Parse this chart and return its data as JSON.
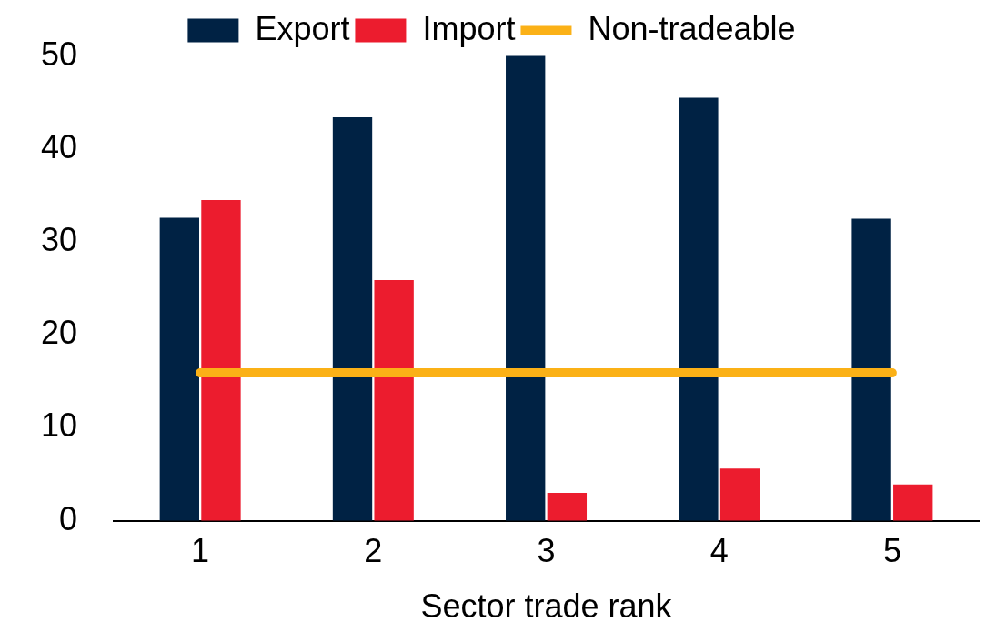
{
  "chart_data": {
    "type": "bar",
    "xlabel": "Sector trade rank",
    "categories": [
      "1",
      "2",
      "3",
      "4",
      "5"
    ],
    "series": [
      {
        "name": "Export",
        "color": "#002244",
        "values": [
          32.6,
          43.4,
          50,
          45.5,
          32.5
        ]
      },
      {
        "name": "Import",
        "color": "#ec1c2e",
        "values": [
          34.5,
          25.9,
          3.0,
          5.6,
          3.9
        ]
      },
      {
        "name": "Non-tradeable",
        "type": "line",
        "color": "#fbb117",
        "values": [
          15.9,
          15.9,
          15.9,
          15.9,
          15.9
        ]
      }
    ],
    "ylim": [
      0,
      50
    ],
    "yticks": [
      0,
      10,
      20,
      30,
      40,
      50
    ],
    "grid": false,
    "legend": "top",
    "marker": "none"
  }
}
